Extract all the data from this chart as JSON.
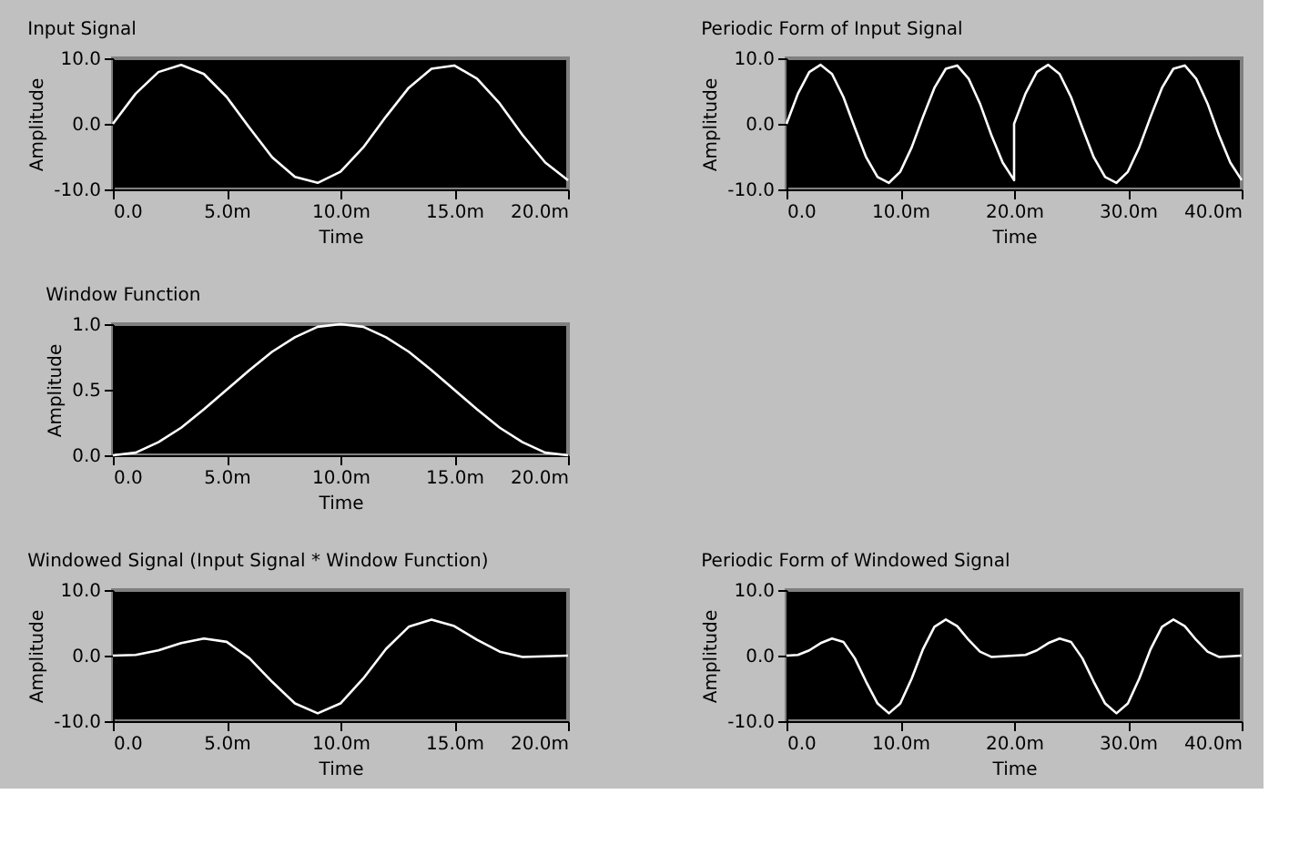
{
  "chart_data": [
    {
      "type": "line",
      "title": "Input Signal",
      "xlabel": "Time",
      "ylabel": "Amplitude",
      "x": [
        0,
        1,
        2,
        3,
        4,
        5,
        6,
        7,
        8,
        9,
        10,
        11,
        12,
        13,
        14,
        15,
        16,
        17,
        18,
        19,
        20
      ],
      "series": [
        {
          "color": "#ffffff",
          "values": [
            0,
            4.6,
            7.9,
            9.0,
            7.6,
            4.1,
            -0.6,
            -5.1,
            -8.1,
            -9.0,
            -7.3,
            -3.6,
            1.1,
            5.5,
            8.4,
            8.9,
            6.9,
            3.1,
            -1.7,
            -5.9,
            -8.6
          ]
        }
      ],
      "xlim": [
        0,
        20
      ],
      "xticks": [
        {
          "value": 0,
          "label": "0.0"
        },
        {
          "value": 5,
          "label": "5.0m"
        },
        {
          "value": 10,
          "label": "10.0m"
        },
        {
          "value": 15,
          "label": "15.0m"
        },
        {
          "value": 20,
          "label": "20.0m"
        }
      ],
      "ylim": [
        -10,
        10
      ],
      "yticks": [
        {
          "value": -10,
          "label": "-10.0"
        },
        {
          "value": 0,
          "label": "0.0"
        },
        {
          "value": 10,
          "label": "10.0"
        }
      ],
      "marker": "none",
      "line_style": "solid"
    },
    {
      "type": "line",
      "title": "Periodic Form of Input Signal",
      "xlabel": "Time",
      "ylabel": "Amplitude",
      "x": [
        0,
        1,
        2,
        3,
        4,
        5,
        6,
        7,
        8,
        9,
        10,
        11,
        12,
        13,
        14,
        15,
        16,
        17,
        18,
        19,
        20,
        20,
        21,
        22,
        23,
        24,
        25,
        26,
        27,
        28,
        29,
        30,
        31,
        32,
        33,
        34,
        35,
        36,
        37,
        38,
        39,
        40
      ],
      "series": [
        {
          "color": "#ffffff",
          "values": [
            0,
            4.6,
            7.9,
            9.0,
            7.6,
            4.1,
            -0.6,
            -5.1,
            -8.1,
            -9.0,
            -7.3,
            -3.6,
            1.1,
            5.5,
            8.4,
            8.9,
            6.9,
            3.1,
            -1.7,
            -5.9,
            -8.6,
            0,
            4.6,
            7.9,
            9.0,
            7.6,
            4.1,
            -0.6,
            -5.1,
            -8.1,
            -9.0,
            -7.3,
            -3.6,
            1.1,
            5.5,
            8.4,
            8.9,
            6.9,
            3.1,
            -1.7,
            -5.9,
            -8.6
          ]
        }
      ],
      "xlim": [
        0,
        40
      ],
      "xticks": [
        {
          "value": 0,
          "label": "0.0"
        },
        {
          "value": 10,
          "label": "10.0m"
        },
        {
          "value": 20,
          "label": "20.0m"
        },
        {
          "value": 30,
          "label": "30.0m"
        },
        {
          "value": 40,
          "label": "40.0m"
        }
      ],
      "ylim": [
        -10,
        10
      ],
      "yticks": [
        {
          "value": -10,
          "label": "-10.0"
        },
        {
          "value": 0,
          "label": "0.0"
        },
        {
          "value": 10,
          "label": "10.0"
        }
      ],
      "marker": "none",
      "line_style": "solid"
    },
    {
      "type": "line",
      "title": "Window Function",
      "xlabel": "Time",
      "ylabel": "Amplitude",
      "x": [
        0,
        1,
        2,
        3,
        4,
        5,
        6,
        7,
        8,
        9,
        10,
        11,
        12,
        13,
        14,
        15,
        16,
        17,
        18,
        19,
        20
      ],
      "series": [
        {
          "color": "#ffffff",
          "values": [
            0,
            0.02,
            0.1,
            0.21,
            0.35,
            0.5,
            0.65,
            0.79,
            0.9,
            0.98,
            1.0,
            0.98,
            0.9,
            0.79,
            0.65,
            0.5,
            0.35,
            0.21,
            0.1,
            0.02,
            0
          ]
        }
      ],
      "xlim": [
        0,
        20
      ],
      "xticks": [
        {
          "value": 0,
          "label": "0.0"
        },
        {
          "value": 5,
          "label": "5.0m"
        },
        {
          "value": 10,
          "label": "10.0m"
        },
        {
          "value": 15,
          "label": "15.0m"
        },
        {
          "value": 20,
          "label": "20.0m"
        }
      ],
      "ylim": [
        0,
        1
      ],
      "yticks": [
        {
          "value": 0,
          "label": "0.0"
        },
        {
          "value": 0.5,
          "label": "0.5"
        },
        {
          "value": 1,
          "label": "1.0"
        }
      ],
      "marker": "none",
      "line_style": "solid"
    },
    {
      "type": "line",
      "title": "Windowed Signal (Input Signal * Window Function)",
      "xlabel": "Time",
      "ylabel": "Amplitude",
      "x": [
        0,
        1,
        2,
        3,
        4,
        5,
        6,
        7,
        8,
        9,
        10,
        11,
        12,
        13,
        14,
        15,
        16,
        17,
        18,
        19,
        20
      ],
      "series": [
        {
          "color": "#ffffff",
          "values": [
            0,
            0.1,
            0.8,
            1.9,
            2.6,
            2.1,
            -0.4,
            -4.0,
            -7.3,
            -8.8,
            -7.3,
            -3.5,
            1.0,
            4.4,
            5.5,
            4.5,
            2.4,
            0.6,
            -0.2,
            -0.1,
            0
          ]
        }
      ],
      "xlim": [
        0,
        20
      ],
      "xticks": [
        {
          "value": 0,
          "label": "0.0"
        },
        {
          "value": 5,
          "label": "5.0m"
        },
        {
          "value": 10,
          "label": "10.0m"
        },
        {
          "value": 15,
          "label": "15.0m"
        },
        {
          "value": 20,
          "label": "20.0m"
        }
      ],
      "ylim": [
        -10,
        10
      ],
      "yticks": [
        {
          "value": -10,
          "label": "-10.0"
        },
        {
          "value": 0,
          "label": "0.0"
        },
        {
          "value": 10,
          "label": "10.0"
        }
      ],
      "marker": "none",
      "line_style": "solid"
    },
    {
      "type": "line",
      "title": "Periodic Form of Windowed Signal",
      "xlabel": "Time",
      "ylabel": "Amplitude",
      "x": [
        0,
        1,
        2,
        3,
        4,
        5,
        6,
        7,
        8,
        9,
        10,
        11,
        12,
        13,
        14,
        15,
        16,
        17,
        18,
        19,
        20,
        21,
        22,
        23,
        24,
        25,
        26,
        27,
        28,
        29,
        30,
        31,
        32,
        33,
        34,
        35,
        36,
        37,
        38,
        39,
        40
      ],
      "series": [
        {
          "color": "#ffffff",
          "values": [
            0,
            0.1,
            0.8,
            1.9,
            2.6,
            2.1,
            -0.4,
            -4.0,
            -7.3,
            -8.8,
            -7.3,
            -3.5,
            1.0,
            4.4,
            5.5,
            4.5,
            2.4,
            0.6,
            -0.2,
            -0.1,
            0,
            0.1,
            0.8,
            1.9,
            2.6,
            2.1,
            -0.4,
            -4.0,
            -7.3,
            -8.8,
            -7.3,
            -3.5,
            1.0,
            4.4,
            5.5,
            4.5,
            2.4,
            0.6,
            -0.2,
            -0.1,
            0
          ]
        }
      ],
      "xlim": [
        0,
        40
      ],
      "xticks": [
        {
          "value": 0,
          "label": "0.0"
        },
        {
          "value": 10,
          "label": "10.0m"
        },
        {
          "value": 20,
          "label": "20.0m"
        },
        {
          "value": 30,
          "label": "30.0m"
        },
        {
          "value": 40,
          "label": "40.0m"
        }
      ],
      "ylim": [
        -10,
        10
      ],
      "yticks": [
        {
          "value": -10,
          "label": "-10.0"
        },
        {
          "value": 0,
          "label": "0.0"
        },
        {
          "value": 10,
          "label": "10.0"
        }
      ],
      "marker": "none",
      "line_style": "solid"
    }
  ]
}
